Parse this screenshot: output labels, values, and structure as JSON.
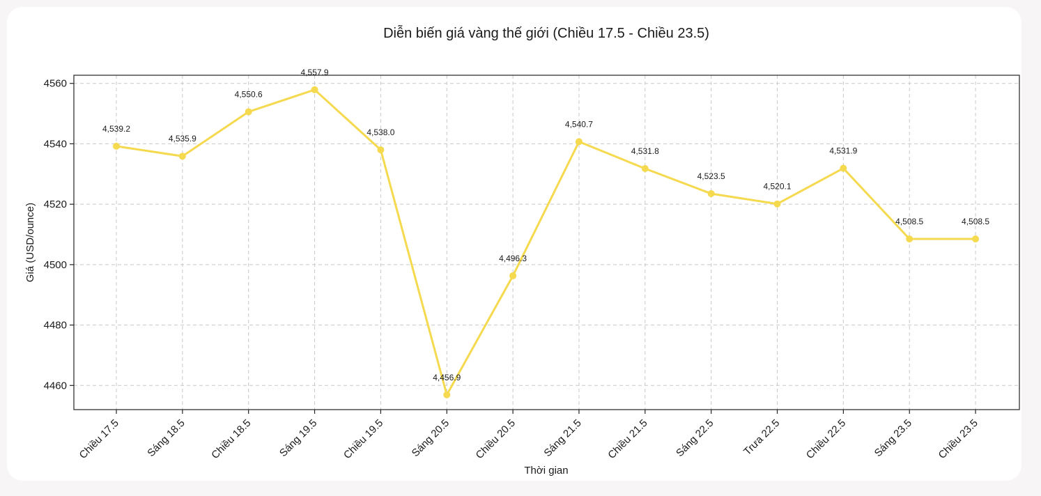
{
  "chart_data": {
    "type": "line",
    "title": "Diễn biến giá vàng thế giới (Chiều 17.5 - Chiều 23.5)",
    "xlabel": "Thời gian",
    "ylabel": "Giá (USD/ounce)",
    "categories": [
      "Chiều 17.5",
      "Sáng 18.5",
      "Chiều 18.5",
      "Sáng 19.5",
      "Chiều 19.5",
      "Sáng 20.5",
      "Chiều 20.5",
      "Sáng 21.5",
      "Chiều 21.5",
      "Sáng 22.5",
      "Trưa 22.5",
      "Chiều 22.5",
      "Sáng 23.5",
      "Chiều 23.5"
    ],
    "series": [
      {
        "values": [
          4539.2,
          4535.9,
          4550.6,
          4557.9,
          4538.0,
          4456.9,
          4496.3,
          4540.7,
          4531.8,
          4523.5,
          4520.1,
          4531.9,
          4508.5,
          4508.5
        ],
        "color": "#f5d94e"
      }
    ],
    "data_labels": [
      "4,539.2",
      "4,535.9",
      "4,550.6",
      "4,557.9",
      "4,538.0",
      "4,456.9",
      "4,496.3",
      "4,540.7",
      "4,531.8",
      "4,523.5",
      "4,520.1",
      "4,531.9",
      "4,508.5",
      "4,508.5"
    ],
    "yticks": [
      4460,
      4480,
      4500,
      4520,
      4540,
      4560
    ],
    "ylim": [
      4452,
      4562.7
    ],
    "grid": true,
    "grid_style": "dashed"
  }
}
